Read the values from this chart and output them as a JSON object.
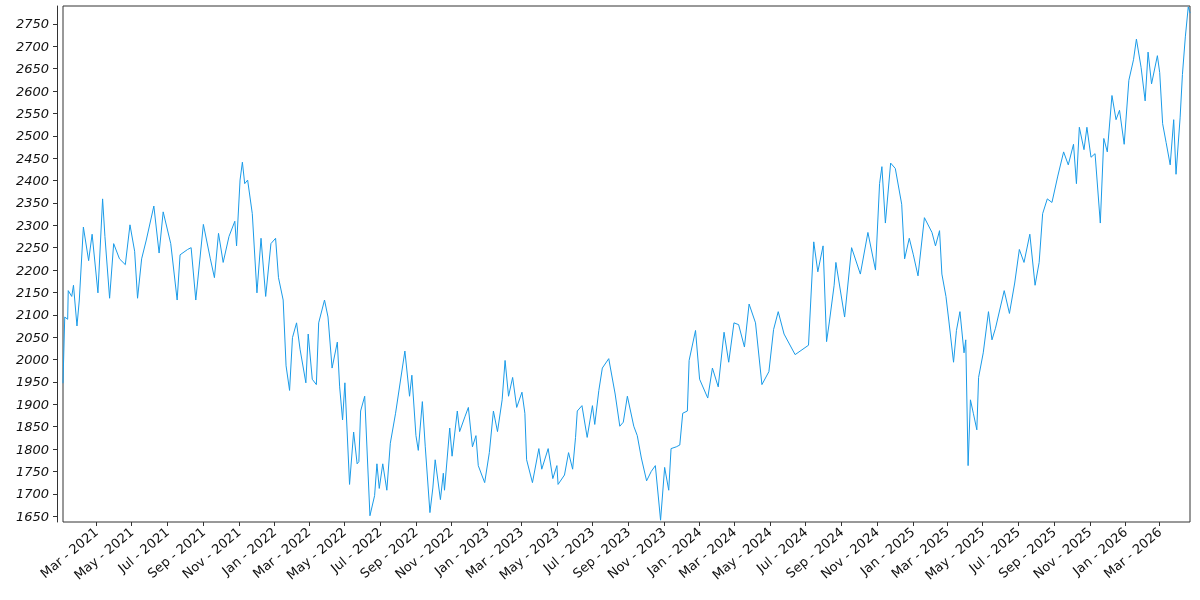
{
  "chart_data": {
    "type": "line",
    "grid": false,
    "marker": "none",
    "line_style": "solid",
    "xlim": [
      "2021-01-03",
      "2026-04-22"
    ],
    "ylim": [
      1637,
      2790
    ],
    "yticks": [
      1650,
      1700,
      1750,
      1800,
      1850,
      1900,
      1950,
      2000,
      2050,
      2100,
      2150,
      2200,
      2250,
      2300,
      2350,
      2400,
      2450,
      2500,
      2550,
      2600,
      2650,
      2700,
      2750
    ],
    "xticks": [
      {
        "value": "2021-03-01",
        "label": "Mar - 2021"
      },
      {
        "value": "2021-05-01",
        "label": "May - 2021"
      },
      {
        "value": "2021-07-01",
        "label": "Jul - 2021"
      },
      {
        "value": "2021-09-01",
        "label": "Sep - 2021"
      },
      {
        "value": "2021-11-01",
        "label": "Nov - 2021"
      },
      {
        "value": "2022-01-01",
        "label": "Jan - 2022"
      },
      {
        "value": "2022-03-01",
        "label": "Mar - 2022"
      },
      {
        "value": "2022-05-01",
        "label": "May - 2022"
      },
      {
        "value": "2022-07-01",
        "label": "Jul - 2022"
      },
      {
        "value": "2022-09-01",
        "label": "Sep - 2022"
      },
      {
        "value": "2022-11-01",
        "label": "Nov - 2022"
      },
      {
        "value": "2023-01-01",
        "label": "Jan - 2023"
      },
      {
        "value": "2023-03-01",
        "label": "Mar - 2023"
      },
      {
        "value": "2023-05-01",
        "label": "May - 2023"
      },
      {
        "value": "2023-07-01",
        "label": "Jul - 2023"
      },
      {
        "value": "2023-09-01",
        "label": "Sep - 2023"
      },
      {
        "value": "2023-11-01",
        "label": "Nov - 2023"
      },
      {
        "value": "2024-01-01",
        "label": "Jan - 2024"
      },
      {
        "value": "2024-03-01",
        "label": "Mar - 2024"
      },
      {
        "value": "2024-05-01",
        "label": "May - 2024"
      },
      {
        "value": "2024-07-01",
        "label": "Jul - 2024"
      },
      {
        "value": "2024-09-01",
        "label": "Sep - 2024"
      },
      {
        "value": "2024-11-01",
        "label": "Nov - 2024"
      },
      {
        "value": "2025-01-01",
        "label": "Jan - 2025"
      },
      {
        "value": "2025-03-01",
        "label": "Mar - 2025"
      },
      {
        "value": "2025-05-01",
        "label": "May - 2025"
      },
      {
        "value": "2025-07-01",
        "label": "Jul - 2025"
      },
      {
        "value": "2025-09-01",
        "label": "Sep - 2025"
      },
      {
        "value": "2025-11-01",
        "label": "Nov - 2025"
      },
      {
        "value": "2026-01-01",
        "label": "Jan - 2026"
      },
      {
        "value": "2026-03-01",
        "label": "Mar - 2026"
      }
    ],
    "series": [
      {
        "color": "#1a9be8",
        "x": [
          "2021-01-03",
          "2021-01-06",
          "2021-01-11",
          "2021-01-12",
          "2021-01-18",
          "2021-01-21",
          "2021-01-27",
          "2021-01-31",
          "2021-02-07",
          "2021-02-16",
          "2021-02-22",
          "2021-03-04",
          "2021-03-12",
          "2021-03-16",
          "2021-03-24",
          "2021-03-31",
          "2021-04-10",
          "2021-04-20",
          "2021-04-28",
          "2021-05-06",
          "2021-05-11",
          "2021-05-18",
          "2021-05-26",
          "2021-06-08",
          "2021-06-17",
          "2021-06-24",
          "2021-07-07",
          "2021-07-18",
          "2021-07-23",
          "2021-08-05",
          "2021-08-11",
          "2021-08-19",
          "2021-09-01",
          "2021-09-13",
          "2021-09-20",
          "2021-09-27",
          "2021-10-05",
          "2021-10-15",
          "2021-10-25",
          "2021-10-28",
          "2021-11-03",
          "2021-11-07",
          "2021-11-11",
          "2021-11-16",
          "2021-11-24",
          "2021-12-02",
          "2021-12-09",
          "2021-12-17",
          "2021-12-26",
          "2022-01-03",
          "2022-01-08",
          "2022-01-16",
          "2022-01-21",
          "2022-01-27",
          "2022-02-01",
          "2022-02-08",
          "2022-02-14",
          "2022-02-24",
          "2022-02-28",
          "2022-03-07",
          "2022-03-14",
          "2022-03-18",
          "2022-03-28",
          "2022-04-03",
          "2022-04-10",
          "2022-04-19",
          "2022-04-23",
          "2022-04-28",
          "2022-05-02",
          "2022-05-10",
          "2022-05-17",
          "2022-05-23",
          "2022-05-26",
          "2022-05-29",
          "2022-06-05",
          "2022-06-14",
          "2022-06-22",
          "2022-06-26",
          "2022-06-30",
          "2022-07-06",
          "2022-07-13",
          "2022-07-19",
          "2022-07-28",
          "2022-08-13",
          "2022-08-21",
          "2022-08-25",
          "2022-09-01",
          "2022-09-05",
          "2022-09-12",
          "2022-09-17",
          "2022-09-25",
          "2022-09-30",
          "2022-10-04",
          "2022-10-13",
          "2022-10-18",
          "2022-10-20",
          "2022-10-29",
          "2022-11-02",
          "2022-11-11",
          "2022-11-15",
          "2022-11-24",
          "2022-11-30",
          "2022-12-07",
          "2022-12-13",
          "2022-12-17",
          "2022-12-23",
          "2022-12-28",
          "2023-01-05",
          "2023-01-12",
          "2023-01-19",
          "2023-01-27",
          "2023-02-01",
          "2023-02-07",
          "2023-02-14",
          "2023-02-21",
          "2023-03-02",
          "2023-03-07",
          "2023-03-10",
          "2023-03-20",
          "2023-03-31",
          "2023-04-05",
          "2023-04-16",
          "2023-04-24",
          "2023-05-01",
          "2023-05-03",
          "2023-05-14",
          "2023-05-21",
          "2023-05-28",
          "2023-06-02",
          "2023-06-05",
          "2023-06-13",
          "2023-06-22",
          "2023-07-01",
          "2023-07-05",
          "2023-07-12",
          "2023-07-18",
          "2023-07-29",
          "2023-08-09",
          "2023-08-17",
          "2023-08-23",
          "2023-08-30",
          "2023-09-10",
          "2023-09-16",
          "2023-09-23",
          "2023-10-02",
          "2023-10-10",
          "2023-10-17",
          "2023-10-26",
          "2023-11-02",
          "2023-11-09",
          "2023-11-13",
          "2023-11-22",
          "2023-11-28",
          "2023-12-03",
          "2023-12-11",
          "2023-12-14",
          "2023-12-25",
          "2024-01-01",
          "2024-01-15",
          "2024-01-23",
          "2024-02-02",
          "2024-02-12",
          "2024-02-20",
          "2024-02-29",
          "2024-03-08",
          "2024-03-18",
          "2024-03-26",
          "2024-04-06",
          "2024-04-17",
          "2024-04-29",
          "2024-05-07",
          "2024-05-15",
          "2024-05-25",
          "2024-06-13",
          "2024-07-06",
          "2024-07-15",
          "2024-07-22",
          "2024-07-31",
          "2024-08-06",
          "2024-08-11",
          "2024-08-19",
          "2024-08-22",
          "2024-09-06",
          "2024-09-18",
          "2024-10-03",
          "2024-10-16",
          "2024-10-29",
          "2024-11-05",
          "2024-11-09",
          "2024-11-15",
          "2024-11-24",
          "2024-12-02",
          "2024-12-13",
          "2024-12-18",
          "2024-12-26",
          "2025-01-02",
          "2025-01-10",
          "2025-01-21",
          "2025-02-03",
          "2025-02-09",
          "2025-02-16",
          "2025-02-20",
          "2025-02-27",
          "2025-03-04",
          "2025-03-12",
          "2025-03-17",
          "2025-03-23",
          "2025-03-30",
          "2025-04-02",
          "2025-04-06",
          "2025-04-10",
          "2025-04-15",
          "2025-04-21",
          "2025-04-24",
          "2025-05-02",
          "2025-05-11",
          "2025-05-17",
          "2025-05-23",
          "2025-06-07",
          "2025-06-16",
          "2025-06-25",
          "2025-07-03",
          "2025-07-11",
          "2025-07-21",
          "2025-07-30",
          "2025-08-06",
          "2025-08-12",
          "2025-08-20",
          "2025-08-28",
          "2025-09-07",
          "2025-09-17",
          "2025-09-25",
          "2025-10-04",
          "2025-10-09",
          "2025-10-14",
          "2025-10-22",
          "2025-10-27",
          "2025-11-03",
          "2025-11-10",
          "2025-11-19",
          "2025-11-25",
          "2025-12-01",
          "2025-12-09",
          "2025-12-16",
          "2025-12-22",
          "2025-12-30",
          "2026-01-07",
          "2026-01-15",
          "2026-01-20",
          "2026-01-28",
          "2026-02-04",
          "2026-02-09",
          "2026-02-15",
          "2026-02-25",
          "2026-03-01",
          "2026-03-06",
          "2026-03-12",
          "2026-03-19",
          "2026-03-25",
          "2026-03-29",
          "2026-04-05",
          "2026-04-09",
          "2026-04-14",
          "2026-04-19",
          "2026-04-22"
        ],
        "values": [
          1948,
          2095,
          2090,
          2154,
          2141,
          2166,
          2075,
          2133,
          2296,
          2221,
          2280,
          2149,
          2359,
          2275,
          2137,
          2259,
          2225,
          2212,
          2301,
          2242,
          2137,
          2225,
          2267,
          2343,
          2238,
          2330,
          2259,
          2133,
          2234,
          2246,
          2250,
          2133,
          2302,
          2225,
          2183,
          2282,
          2217,
          2275,
          2309,
          2254,
          2401,
          2441,
          2393,
          2401,
          2326,
          2149,
          2271,
          2141,
          2259,
          2271,
          2183,
          2133,
          1986,
          1931,
          2049,
          2082,
          2023,
          1948,
          2057,
          1956,
          1944,
          2082,
          2133,
          2095,
          1981,
          2039,
          1939,
          1865,
          1948,
          1721,
          1838,
          1767,
          1772,
          1885,
          1918,
          1651,
          1696,
          1767,
          1712,
          1767,
          1708,
          1813,
          1880,
          2019,
          1918,
          1965,
          1830,
          1797,
          1906,
          1805,
          1658,
          1713,
          1776,
          1687,
          1746,
          1708,
          1847,
          1784,
          1885,
          1839,
          1872,
          1893,
          1805,
          1830,
          1763,
          1742,
          1725,
          1792,
          1885,
          1839,
          1910,
          1998,
          1918,
          1960,
          1893,
          1927,
          1880,
          1776,
          1725,
          1801,
          1755,
          1801,
          1734,
          1763,
          1721,
          1742,
          1792,
          1755,
          1826,
          1885,
          1897,
          1826,
          1897,
          1855,
          1931,
          1981,
          2002,
          1923,
          1851,
          1860,
          1918,
          1851,
          1830,
          1780,
          1729,
          1750,
          1763,
          1641,
          1759,
          1708,
          1801,
          1805,
          1809,
          1880,
          1885,
          1998,
          2065,
          1956,
          1914,
          1981,
          1939,
          2061,
          1994,
          2082,
          2078,
          2028,
          2124,
          2082,
          1944,
          1973,
          2067,
          2107,
          2057,
          2011,
          2032,
          2263,
          2196,
          2254,
          2040,
          2086,
          2166,
          2217,
          2095,
          2250,
          2191,
          2284,
          2200,
          2393,
          2431,
          2305,
          2439,
          2427,
          2347,
          2225,
          2271,
          2234,
          2187,
          2317,
          2284,
          2254,
          2288,
          2191,
          2141,
          2086,
          1994,
          2065,
          2107,
          2015,
          2044,
          1763,
          1910,
          1880,
          1843,
          1960,
          2015,
          2107,
          2044,
          2070,
          2154,
          2103,
          2171,
          2246,
          2217,
          2280,
          2166,
          2217,
          2326,
          2359,
          2351,
          2410,
          2464,
          2435,
          2481,
          2393,
          2519,
          2469,
          2519,
          2452,
          2460,
          2305,
          2494,
          2464,
          2590,
          2536,
          2557,
          2481,
          2624,
          2670,
          2716,
          2653,
          2578,
          2687,
          2616,
          2679,
          2641,
          2527,
          2485,
          2435,
          2536,
          2414,
          2540,
          2637,
          2721,
          2788,
          2775
        ]
      }
    ]
  }
}
